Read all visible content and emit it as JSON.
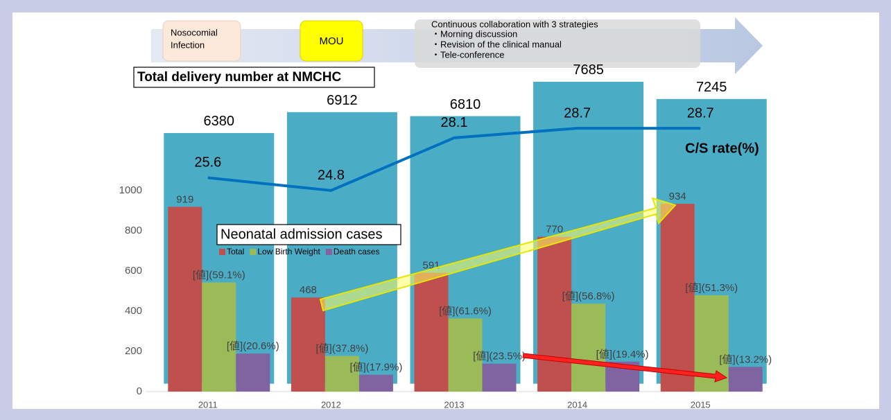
{
  "timeline": {
    "stages": [
      [
        "Nosocomial",
        "Infection"
      ],
      [
        "MOU"
      ]
    ],
    "strategies": {
      "title": "Continuous collaboration with 3 strategies",
      "items": [
        "・Morning discussion",
        "・Revision of the clinical manual",
        "・Tele-conference"
      ]
    }
  },
  "chart_data": {
    "type": "bar",
    "categories": [
      "2011",
      "2012",
      "2013",
      "2014",
      "2015"
    ],
    "ylim": [
      0,
      1810
    ],
    "yticks": [
      0,
      200,
      400,
      600,
      800,
      1000
    ],
    "y2lim": [
      -200,
      9060
    ],
    "y3lim": [
      12.2,
      35.0
    ],
    "grid": false,
    "legend_title": "Neonatal admission cases",
    "series": [
      {
        "name": "Total delivery number at NMCHC",
        "type": "bar",
        "axis": "y2",
        "color": "#4bacc6",
        "values": [
          6380,
          6912,
          6810,
          7685,
          7245
        ]
      },
      {
        "name": "Total",
        "type": "bar",
        "color": "#c0504d",
        "values": [
          919,
          468,
          591,
          770,
          934
        ],
        "legend": true
      },
      {
        "name": "Low Birth Weight",
        "type": "bar",
        "color": "#9bbb59",
        "values": [
          543,
          177,
          364,
          437,
          479
        ],
        "value_labels": [
          "[値](59.1%)",
          "[値](37.8%)",
          "[値](61.6%)",
          "[値](56.8%)",
          "[値](51.3%)"
        ],
        "legend": true
      },
      {
        "name": "Death cases",
        "type": "bar",
        "color": "#8064a2",
        "values": [
          189,
          84,
          139,
          149,
          123
        ],
        "value_labels": [
          "[値](20.6%)",
          "[値](17.9%)",
          "[値](23.5%)",
          "[値](19.4%)",
          "[値](13.2%)"
        ],
        "legend": true
      },
      {
        "name": "C/S rate(%)",
        "type": "line",
        "axis": "y3",
        "color": "#0070c0",
        "values": [
          25.6,
          24.8,
          28.1,
          28.7,
          28.7
        ]
      }
    ]
  }
}
